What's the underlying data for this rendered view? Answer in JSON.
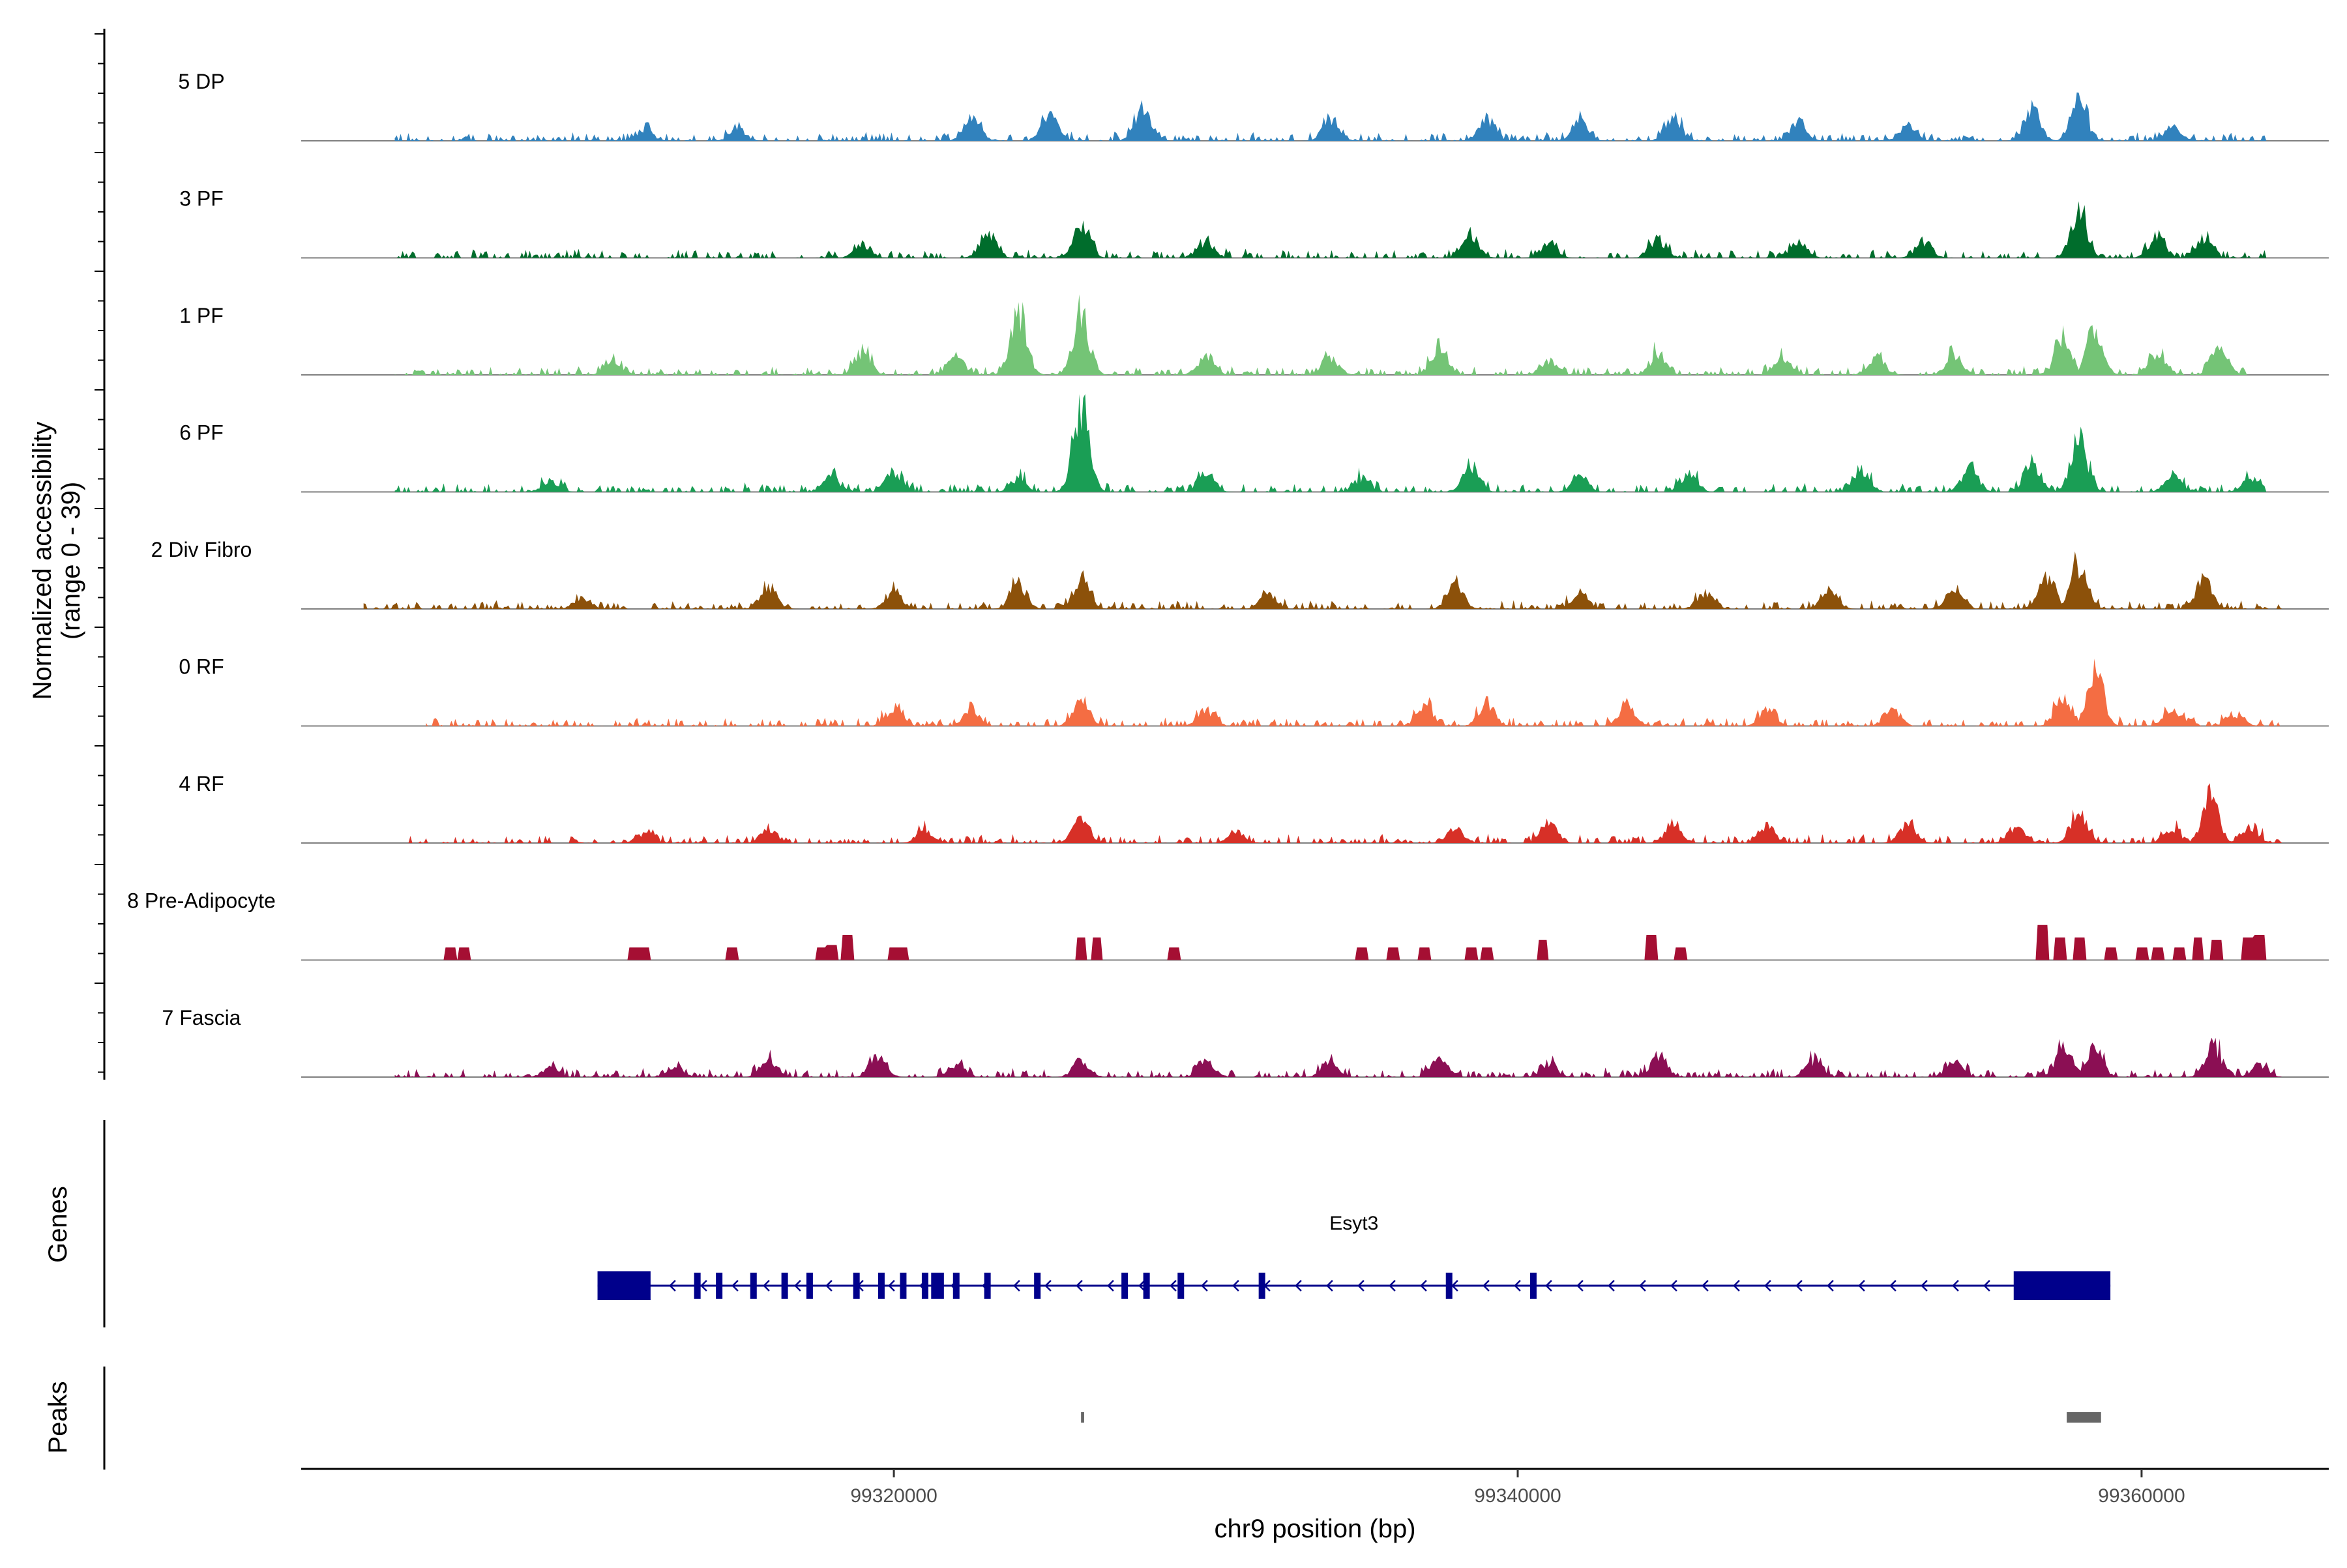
{
  "chart_data": {
    "type": "area",
    "title": "",
    "ylabel": "Normalized accessibility",
    "ylabel_range": "(range 0 - 39)",
    "ylim": [
      0,
      39
    ],
    "xlabel": "chr9 position (bp)",
    "xlim": [
      99301000,
      99366000
    ],
    "xticks": [
      99320000,
      99340000,
      99360000
    ],
    "xtick_labels": [
      "99320000",
      "99340000",
      "99360000"
    ],
    "series": [
      {
        "name": "5 DP",
        "color": "#3182bd",
        "signal_start": 99304000,
        "signal_end": 99364000,
        "peaks": [
          [
            99312000,
            5
          ],
          [
            99315000,
            5
          ],
          [
            99322500,
            11
          ],
          [
            99325000,
            12
          ],
          [
            99328000,
            14
          ],
          [
            99334000,
            10
          ],
          [
            99339000,
            10
          ],
          [
            99342000,
            9
          ],
          [
            99345000,
            10
          ],
          [
            99349000,
            9
          ],
          [
            99352500,
            7
          ],
          [
            99356500,
            13
          ],
          [
            99358000,
            16
          ],
          [
            99361000,
            6
          ]
        ]
      },
      {
        "name": "3 PF",
        "color": "#006d2c",
        "signal_start": 99304000,
        "signal_end": 99364000,
        "peaks": [
          [
            99319000,
            6
          ],
          [
            99323000,
            11
          ],
          [
            99326000,
            15
          ],
          [
            99330000,
            7
          ],
          [
            99338500,
            10
          ],
          [
            99341000,
            6
          ],
          [
            99344500,
            8
          ],
          [
            99349000,
            7
          ],
          [
            99353000,
            7
          ],
          [
            99358000,
            19
          ],
          [
            99360500,
            9
          ],
          [
            99362000,
            8
          ]
        ]
      },
      {
        "name": "1 PF",
        "color": "#74c476",
        "signal_start": 99304000,
        "signal_end": 99364000,
        "peaks": [
          [
            99311000,
            6
          ],
          [
            99319000,
            9
          ],
          [
            99322000,
            8
          ],
          [
            99324000,
            28
          ],
          [
            99326000,
            26
          ],
          [
            99330000,
            8
          ],
          [
            99334000,
            7
          ],
          [
            99337500,
            13
          ],
          [
            99341000,
            6
          ],
          [
            99344500,
            9
          ],
          [
            99348500,
            7
          ],
          [
            99351500,
            8
          ],
          [
            99354000,
            9
          ],
          [
            99357500,
            18
          ],
          [
            99358500,
            20
          ],
          [
            99360500,
            10
          ],
          [
            99362500,
            11
          ]
        ]
      },
      {
        "name": "6 PF",
        "color": "#1a9e55",
        "signal_start": 99304000,
        "signal_end": 99364000,
        "peaks": [
          [
            99309000,
            5
          ],
          [
            99318000,
            7
          ],
          [
            99320000,
            9
          ],
          [
            99324000,
            6
          ],
          [
            99326000,
            39
          ],
          [
            99330000,
            8
          ],
          [
            99335000,
            6
          ],
          [
            99338500,
            11
          ],
          [
            99342000,
            7
          ],
          [
            99345500,
            8
          ],
          [
            99351000,
            9
          ],
          [
            99354500,
            11
          ],
          [
            99356500,
            12
          ],
          [
            99358000,
            24
          ],
          [
            99361000,
            7
          ],
          [
            99363500,
            6
          ]
        ]
      },
      {
        "name": "2 Div Fibro",
        "color": "#8c510a",
        "signal_start": 99303000,
        "signal_end": 99364500,
        "peaks": [
          [
            99310000,
            5
          ],
          [
            99316000,
            9
          ],
          [
            99320000,
            8
          ],
          [
            99324000,
            11
          ],
          [
            99326000,
            13
          ],
          [
            99332000,
            6
          ],
          [
            99338000,
            10
          ],
          [
            99342000,
            7
          ],
          [
            99346000,
            7
          ],
          [
            99350000,
            8
          ],
          [
            99354000,
            9
          ],
          [
            99357000,
            14
          ],
          [
            99358000,
            19
          ],
          [
            99362000,
            13
          ]
        ]
      },
      {
        "name": "0 RF",
        "color": "#f46d43",
        "signal_start": 99305000,
        "signal_end": 99364500,
        "peaks": [
          [
            99320000,
            8
          ],
          [
            99322500,
            7
          ],
          [
            99326000,
            10
          ],
          [
            99330000,
            7
          ],
          [
            99337000,
            8
          ],
          [
            99339000,
            9
          ],
          [
            99343500,
            10
          ],
          [
            99348000,
            7
          ],
          [
            99352000,
            7
          ],
          [
            99357500,
            13
          ],
          [
            99358500,
            23
          ],
          [
            99361000,
            7
          ],
          [
            99363000,
            5
          ]
        ]
      },
      {
        "name": "4 RF",
        "color": "#d73027",
        "signal_start": 99304000,
        "signal_end": 99364500,
        "peaks": [
          [
            99312000,
            4
          ],
          [
            99316000,
            6
          ],
          [
            99321000,
            5
          ],
          [
            99326000,
            10
          ],
          [
            99331000,
            5
          ],
          [
            99338000,
            7
          ],
          [
            99341000,
            8
          ],
          [
            99345000,
            9
          ],
          [
            99348000,
            7
          ],
          [
            99352500,
            8
          ],
          [
            99356000,
            8
          ],
          [
            99358000,
            13
          ],
          [
            99361000,
            6
          ],
          [
            99362200,
            20
          ],
          [
            99363500,
            6
          ]
        ]
      },
      {
        "name": "8 Pre-Adipocyte",
        "color": "#a50f33",
        "signal_start": 99305000,
        "signal_end": 99364500,
        "peaks": [
          [
            99305800,
            5
          ],
          [
            99306200,
            5
          ],
          [
            99311700,
            5
          ],
          [
            99312000,
            5
          ],
          [
            99314800,
            5
          ],
          [
            99317700,
            5
          ],
          [
            99318000,
            6
          ],
          [
            99318500,
            10
          ],
          [
            99320000,
            5
          ],
          [
            99320300,
            5
          ],
          [
            99326000,
            9
          ],
          [
            99326500,
            9
          ],
          [
            99329000,
            5
          ],
          [
            99335000,
            5
          ],
          [
            99336000,
            5
          ],
          [
            99337000,
            5
          ],
          [
            99338500,
            5
          ],
          [
            99339000,
            5
          ],
          [
            99340800,
            8
          ],
          [
            99344300,
            10
          ],
          [
            99345200,
            5
          ],
          [
            99356800,
            14
          ],
          [
            99357400,
            9
          ],
          [
            99358000,
            9
          ],
          [
            99359000,
            5
          ],
          [
            99360000,
            5
          ],
          [
            99360500,
            5
          ],
          [
            99361200,
            5
          ],
          [
            99361800,
            9
          ],
          [
            99362400,
            8
          ],
          [
            99363400,
            9
          ],
          [
            99363800,
            10
          ]
        ]
      },
      {
        "name": "7 Fascia",
        "color": "#8b0f54",
        "signal_start": 99304000,
        "signal_end": 99364500,
        "peaks": [
          [
            99309000,
            4
          ],
          [
            99313000,
            5
          ],
          [
            99316000,
            7
          ],
          [
            99319500,
            10
          ],
          [
            99322000,
            6
          ],
          [
            99326000,
            7
          ],
          [
            99330000,
            6
          ],
          [
            99334000,
            7
          ],
          [
            99337500,
            8
          ],
          [
            99341000,
            6
          ],
          [
            99344500,
            9
          ],
          [
            99349500,
            7
          ],
          [
            99354000,
            7
          ],
          [
            99357500,
            13
          ],
          [
            99358500,
            12
          ],
          [
            99362300,
            14
          ],
          [
            99363800,
            5
          ]
        ]
      }
    ],
    "genes": {
      "title": "Genes",
      "items": [
        {
          "name": "Esyt3",
          "start": 99310500,
          "end": 99359000,
          "strand": "-",
          "color": "#00008b",
          "utr_blocks": [
            [
              99310500,
              99312200
            ],
            [
              99355900,
              99359000
            ]
          ],
          "exons": [
            99313700,
            99314400,
            99315500,
            99316500,
            99317300,
            99318800,
            99319600,
            99320300,
            99321000,
            99321300,
            99321500,
            99322000,
            99323000,
            99324600,
            99327400,
            99328100,
            99329200,
            99331800,
            99337800,
            99340500
          ]
        }
      ]
    },
    "peaks_track": {
      "title": "Peaks",
      "color": "#666666",
      "regions": [
        [
          99326000,
          99326100
        ],
        [
          99357600,
          99358700
        ]
      ]
    }
  }
}
